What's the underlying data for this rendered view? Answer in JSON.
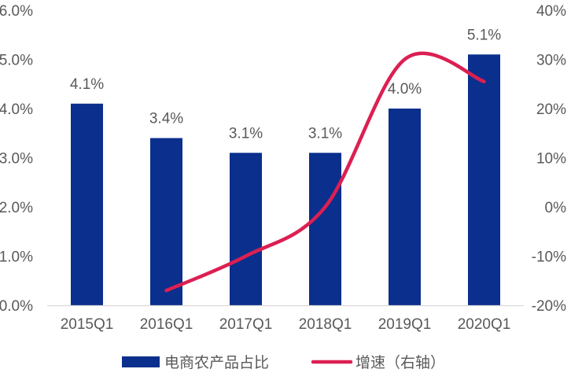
{
  "chart_data": {
    "type": "bar",
    "categories": [
      "2015Q1",
      "2016Q1",
      "2017Q1",
      "2018Q1",
      "2019Q1",
      "2020Q1"
    ],
    "series": [
      {
        "name": "电商农产品占比",
        "type": "bar",
        "axis": "left",
        "values": [
          4.1,
          3.4,
          3.1,
          3.1,
          4.0,
          5.1
        ],
        "labels": [
          "4.1%",
          "3.4%",
          "3.1%",
          "3.1%",
          "4.0%",
          "5.1%"
        ],
        "color": "#0a2f8c"
      },
      {
        "name": "增速（右轴）",
        "type": "line",
        "axis": "right",
        "smooth": true,
        "values": [
          null,
          -17,
          -10,
          0,
          30,
          25.5
        ],
        "color": "#dc1f52"
      }
    ],
    "y_left": {
      "ylim": [
        0,
        6
      ],
      "ticks": [
        "0.0%",
        "1.0%",
        "2.0%",
        "3.0%",
        "4.0%",
        "5.0%",
        "6.0%"
      ]
    },
    "y_right": {
      "ylim": [
        -20,
        40
      ],
      "ticks": [
        "-20%",
        "-10%",
        "0%",
        "10%",
        "20%",
        "30%",
        "40%"
      ]
    },
    "legend": {
      "position": "bottom"
    },
    "grid": false
  }
}
